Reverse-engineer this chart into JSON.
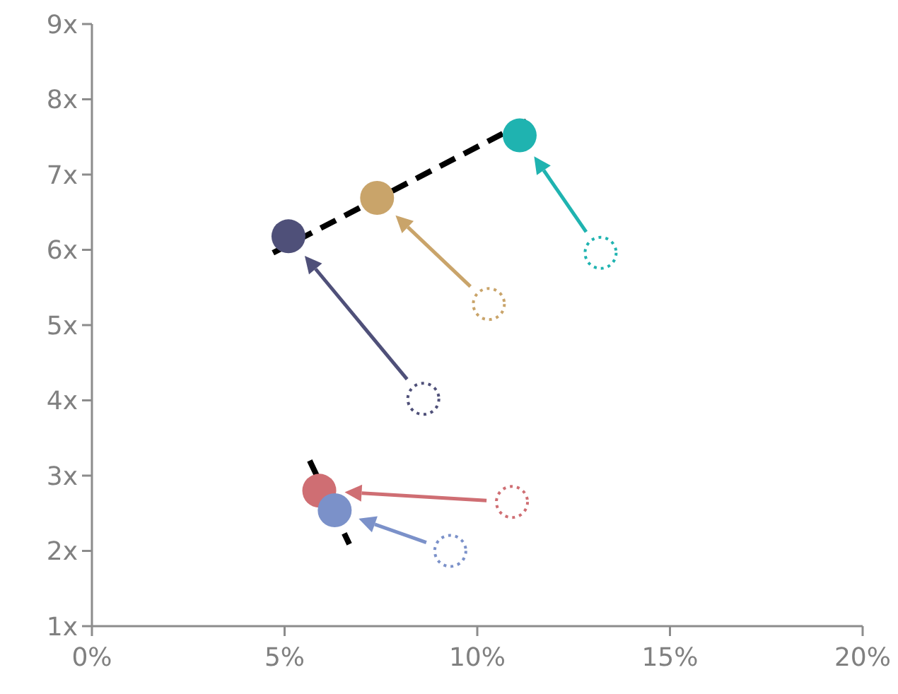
{
  "chart_data": {
    "type": "scatter",
    "xlim": [
      0,
      20
    ],
    "ylim": [
      1,
      9
    ],
    "xticks": [
      {
        "value": 0,
        "label": "0%"
      },
      {
        "value": 5,
        "label": "5%"
      },
      {
        "value": 10,
        "label": "10%"
      },
      {
        "value": 15,
        "label": "15%"
      },
      {
        "value": 20,
        "label": "20%"
      }
    ],
    "yticks": [
      {
        "value": 1,
        "label": "1x"
      },
      {
        "value": 2,
        "label": "2x"
      },
      {
        "value": 3,
        "label": "3x"
      },
      {
        "value": 4,
        "label": "4x"
      },
      {
        "value": 5,
        "label": "5x"
      },
      {
        "value": 6,
        "label": "6x"
      },
      {
        "value": 7,
        "label": "7x"
      },
      {
        "value": 8,
        "label": "8x"
      },
      {
        "value": 9,
        "label": "9x"
      }
    ],
    "grid": false,
    "series": [
      {
        "marker": "circle",
        "line_style": "dotted",
        "x": [
          8.6,
          10.3,
          13.2,
          10.9,
          9.3
        ],
        "values": [
          4.02,
          5.28,
          5.96,
          2.65,
          2.0
        ],
        "colors": [
          "#4f5079",
          "#c9a46a",
          "#1fb3b0",
          "#cf6e73",
          "#7b91c9"
        ]
      },
      {
        "marker": "circle",
        "line_style": "solid",
        "x": [
          5.1,
          7.4,
          11.1,
          5.9,
          6.3
        ],
        "values": [
          6.18,
          6.69,
          7.52,
          2.8,
          2.54
        ],
        "colors": [
          "#4f5079",
          "#c9a46a",
          "#1fb3b0",
          "#cf6e73",
          "#7b91c9"
        ]
      },
      {
        "type": "line",
        "marker": "none",
        "line_style": "dashed",
        "color": "#000000",
        "x": [
          4.7,
          11.4
        ],
        "values": [
          5.96,
          7.74
        ]
      },
      {
        "type": "line",
        "marker": "none",
        "line_style": "dashed",
        "color": "#000000",
        "x": [
          5.65,
          6.68
        ],
        "values": [
          3.2,
          2.09
        ]
      }
    ]
  }
}
